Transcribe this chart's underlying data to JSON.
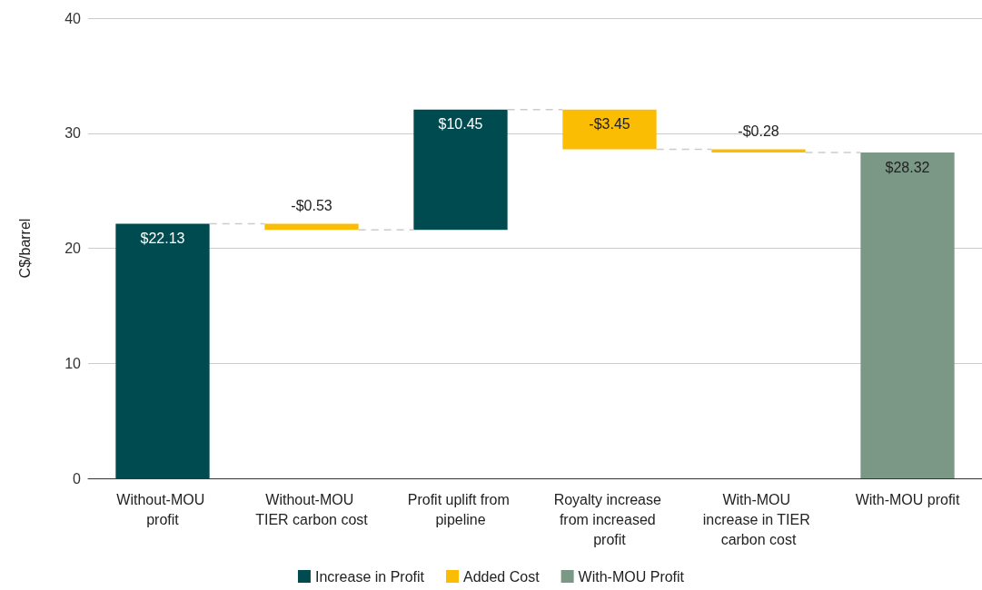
{
  "chart_data": {
    "type": "bar",
    "ylabel": "C$/barrel",
    "categories": [
      "Without-MOU profit",
      "Without-MOU TIER carbon cost",
      "Profit uplift from pipeline",
      "Royalty increase from increased profit",
      "With-MOU increase in TIER carbon cost",
      "With-MOU profit"
    ],
    "series": [
      {
        "name": "Increase in Profit",
        "color": "#004b50",
        "values": [
          22.13,
          null,
          10.45,
          null,
          null,
          null
        ],
        "base": [
          0,
          null,
          21.6,
          null,
          null,
          null
        ],
        "value_labels": [
          "$22.13",
          null,
          "$10.45",
          null,
          null,
          null
        ]
      },
      {
        "name": "Added Cost",
        "color": "#fbbc04",
        "values": [
          null,
          -0.53,
          null,
          -3.45,
          -0.28,
          null
        ],
        "base": [
          null,
          22.13,
          null,
          32.05,
          28.6,
          null
        ],
        "value_labels": [
          null,
          "-$0.53",
          null,
          "-$3.45",
          "-$0.28",
          null
        ]
      },
      {
        "name": "With-MOU Profit",
        "color": "#7b9886",
        "values": [
          null,
          null,
          null,
          null,
          null,
          28.32
        ],
        "base": [
          null,
          null,
          null,
          null,
          null,
          0
        ],
        "value_labels": [
          null,
          null,
          null,
          null,
          null,
          "$28.32"
        ]
      }
    ],
    "ylim": [
      0,
      40
    ],
    "yticks": [
      0,
      10,
      20,
      30,
      40
    ],
    "grid": "y",
    "legend": "bottom"
  }
}
